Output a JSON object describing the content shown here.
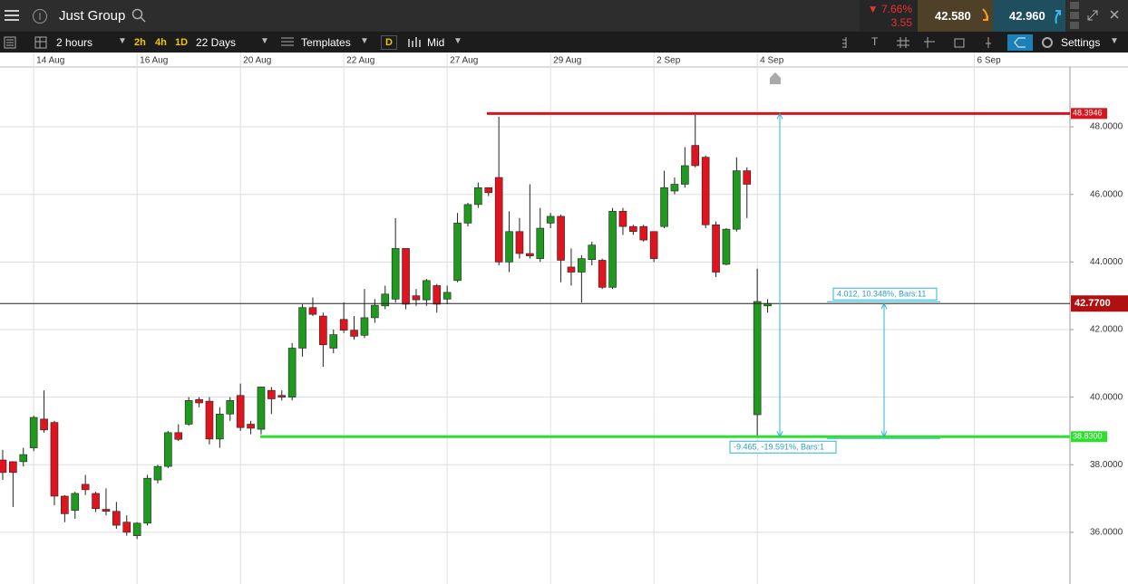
{
  "toolbar": {
    "instrument": "Just Group",
    "change_pct": "7.66%",
    "change": "3.55",
    "sell": "42.580",
    "buy": "42.960",
    "interval": "2 hours",
    "quick_intervals": [
      "2h",
      "4h",
      "1D"
    ],
    "range": "22 Days",
    "templates": "Templates",
    "d_button": "D",
    "price_type": "Mid",
    "settings": "Settings"
  },
  "chart_data": {
    "type": "candlestick",
    "open": [
      38.14,
      38.09,
      38.09,
      38.5,
      39.35,
      39.25,
      37.07,
      36.65,
      37.42,
      37.15,
      36.68,
      36.62,
      36.3,
      35.9,
      36.27,
      37.55,
      37.95,
      38.95,
      39.2,
      39.93,
      39.88,
      38.76,
      39.5,
      40.05,
      39.2,
      39.05,
      40.2,
      40.05,
      40.0,
      41.45,
      42.65,
      42.4,
      41.45,
      42.3,
      41.98,
      41.83,
      42.35,
      42.7,
      42.9,
      44.4,
      43.0,
      42.88,
      43.3,
      42.9,
      43.45,
      45.15,
      45.7,
      46.2,
      46.5,
      44.0,
      44.9,
      44.25,
      44.1,
      45.15,
      45.35,
      43.85,
      43.7,
      44.07,
      44.05,
      43.25,
      45.5,
      45.05,
      45.05,
      44.9,
      45.05,
      46.1,
      46.3,
      47.45,
      47.1,
      45.1,
      43.93,
      44.97,
      46.7,
      39.48,
      42.7
    ],
    "high": [
      38.44,
      38.1,
      38.5,
      39.45,
      40.2,
      39.3,
      37.1,
      37.2,
      37.7,
      37.2,
      37.3,
      36.9,
      36.5,
      36.3,
      37.7,
      38.0,
      39.0,
      39.2,
      40.0,
      40.0,
      40.0,
      39.7,
      40.0,
      40.4,
      39.3,
      40.3,
      40.3,
      40.2,
      41.6,
      42.75,
      42.95,
      42.5,
      42.0,
      42.8,
      42.4,
      43.2,
      42.9,
      43.3,
      45.3,
      44.4,
      43.2,
      43.5,
      43.35,
      43.3,
      45.45,
      45.75,
      46.35,
      46.2,
      48.3,
      45.5,
      45.3,
      46.3,
      45.6,
      45.45,
      45.4,
      44.4,
      44.2,
      44.6,
      44.1,
      45.6,
      45.6,
      45.1,
      45.1,
      44.9,
      46.7,
      46.5,
      47.4,
      48.35,
      47.15,
      45.2,
      45.0,
      47.1,
      46.8,
      43.8,
      42.9
    ],
    "low": [
      37.55,
      36.75,
      37.95,
      38.4,
      38.95,
      36.8,
      36.3,
      36.4,
      37.1,
      36.6,
      36.5,
      36.1,
      35.9,
      35.8,
      36.2,
      37.45,
      37.9,
      38.7,
      39.15,
      39.7,
      38.6,
      38.5,
      39.3,
      39.0,
      38.9,
      38.9,
      39.5,
      39.9,
      39.9,
      41.2,
      42.4,
      40.9,
      41.3,
      41.9,
      41.7,
      41.75,
      42.2,
      42.6,
      42.8,
      42.6,
      42.7,
      42.7,
      42.5,
      42.75,
      43.4,
      45.05,
      45.6,
      45.95,
      43.9,
      43.7,
      44.1,
      44.1,
      44.0,
      45.0,
      43.4,
      43.3,
      42.8,
      43.9,
      43.2,
      43.2,
      44.8,
      44.8,
      44.6,
      44.0,
      45.0,
      46.0,
      46.2,
      46.8,
      45.0,
      43.55,
      43.9,
      44.9,
      45.3,
      38.83,
      42.5
    ],
    "close": [
      37.77,
      37.77,
      38.3,
      39.4,
      39.03,
      37.07,
      36.55,
      37.15,
      37.26,
      36.7,
      36.62,
      36.21,
      36.0,
      36.27,
      37.6,
      37.95,
      38.95,
      38.75,
      39.9,
      39.83,
      38.76,
      39.5,
      39.9,
      39.1,
      39.08,
      40.3,
      39.95,
      40.0,
      41.45,
      42.65,
      42.45,
      41.55,
      41.85,
      41.98,
      41.8,
      42.35,
      42.72,
      43.05,
      44.4,
      42.75,
      42.88,
      43.45,
      42.75,
      43.1,
      45.15,
      45.7,
      46.2,
      46.05,
      44.0,
      44.9,
      44.25,
      44.18,
      45.0,
      45.35,
      44.05,
      43.7,
      44.1,
      44.5,
      43.25,
      45.5,
      45.05,
      44.9,
      44.65,
      44.1,
      46.2,
      46.3,
      46.85,
      46.85,
      45.1,
      43.7,
      44.97,
      46.7,
      46.3,
      42.83,
      42.77
    ],
    "up_color": "#1f9a1f",
    "down_color": "#e0141e",
    "xlim": [
      -0.26,
      103.25
    ],
    "xticks": [
      {
        "value": 3,
        "label": "14 Aug"
      },
      {
        "value": 13,
        "label": "16 Aug"
      },
      {
        "value": 23,
        "label": "20 Aug"
      },
      {
        "value": 33,
        "label": "22 Aug"
      },
      {
        "value": 43,
        "label": "27 Aug"
      },
      {
        "value": 53,
        "label": "29 Aug"
      },
      {
        "value": 63,
        "label": "2 Sep"
      },
      {
        "value": 73,
        "label": "4 Sep"
      },
      {
        "value": 94,
        "label": "6 Sep"
      }
    ],
    "ylim": [
      34.47,
      49.77
    ],
    "yticks": [
      {
        "value": 36,
        "label": "36.0000"
      },
      {
        "value": 38,
        "label": "38.0000"
      },
      {
        "value": 40,
        "label": "40.0000"
      },
      {
        "value": 42,
        "label": "42.0000"
      },
      {
        "value": 44,
        "label": "44.0000"
      },
      {
        "value": 46,
        "label": "46.0000"
      },
      {
        "value": 48,
        "label": "48.0000"
      }
    ],
    "grid": true,
    "horizontal_lines": [
      {
        "value": 48.3946,
        "label": "48.3946",
        "color": "#d8141c"
      },
      {
        "value": 38.83,
        "label": "38.8300",
        "color": "#2ee02e"
      }
    ],
    "current_price": {
      "value": 42.77,
      "label": "42.7700",
      "color": "#b01010"
    },
    "annotations": [
      "4.012, 10.348%, Bars:11",
      "-9.465, -19.591%, Bars:1"
    ]
  }
}
